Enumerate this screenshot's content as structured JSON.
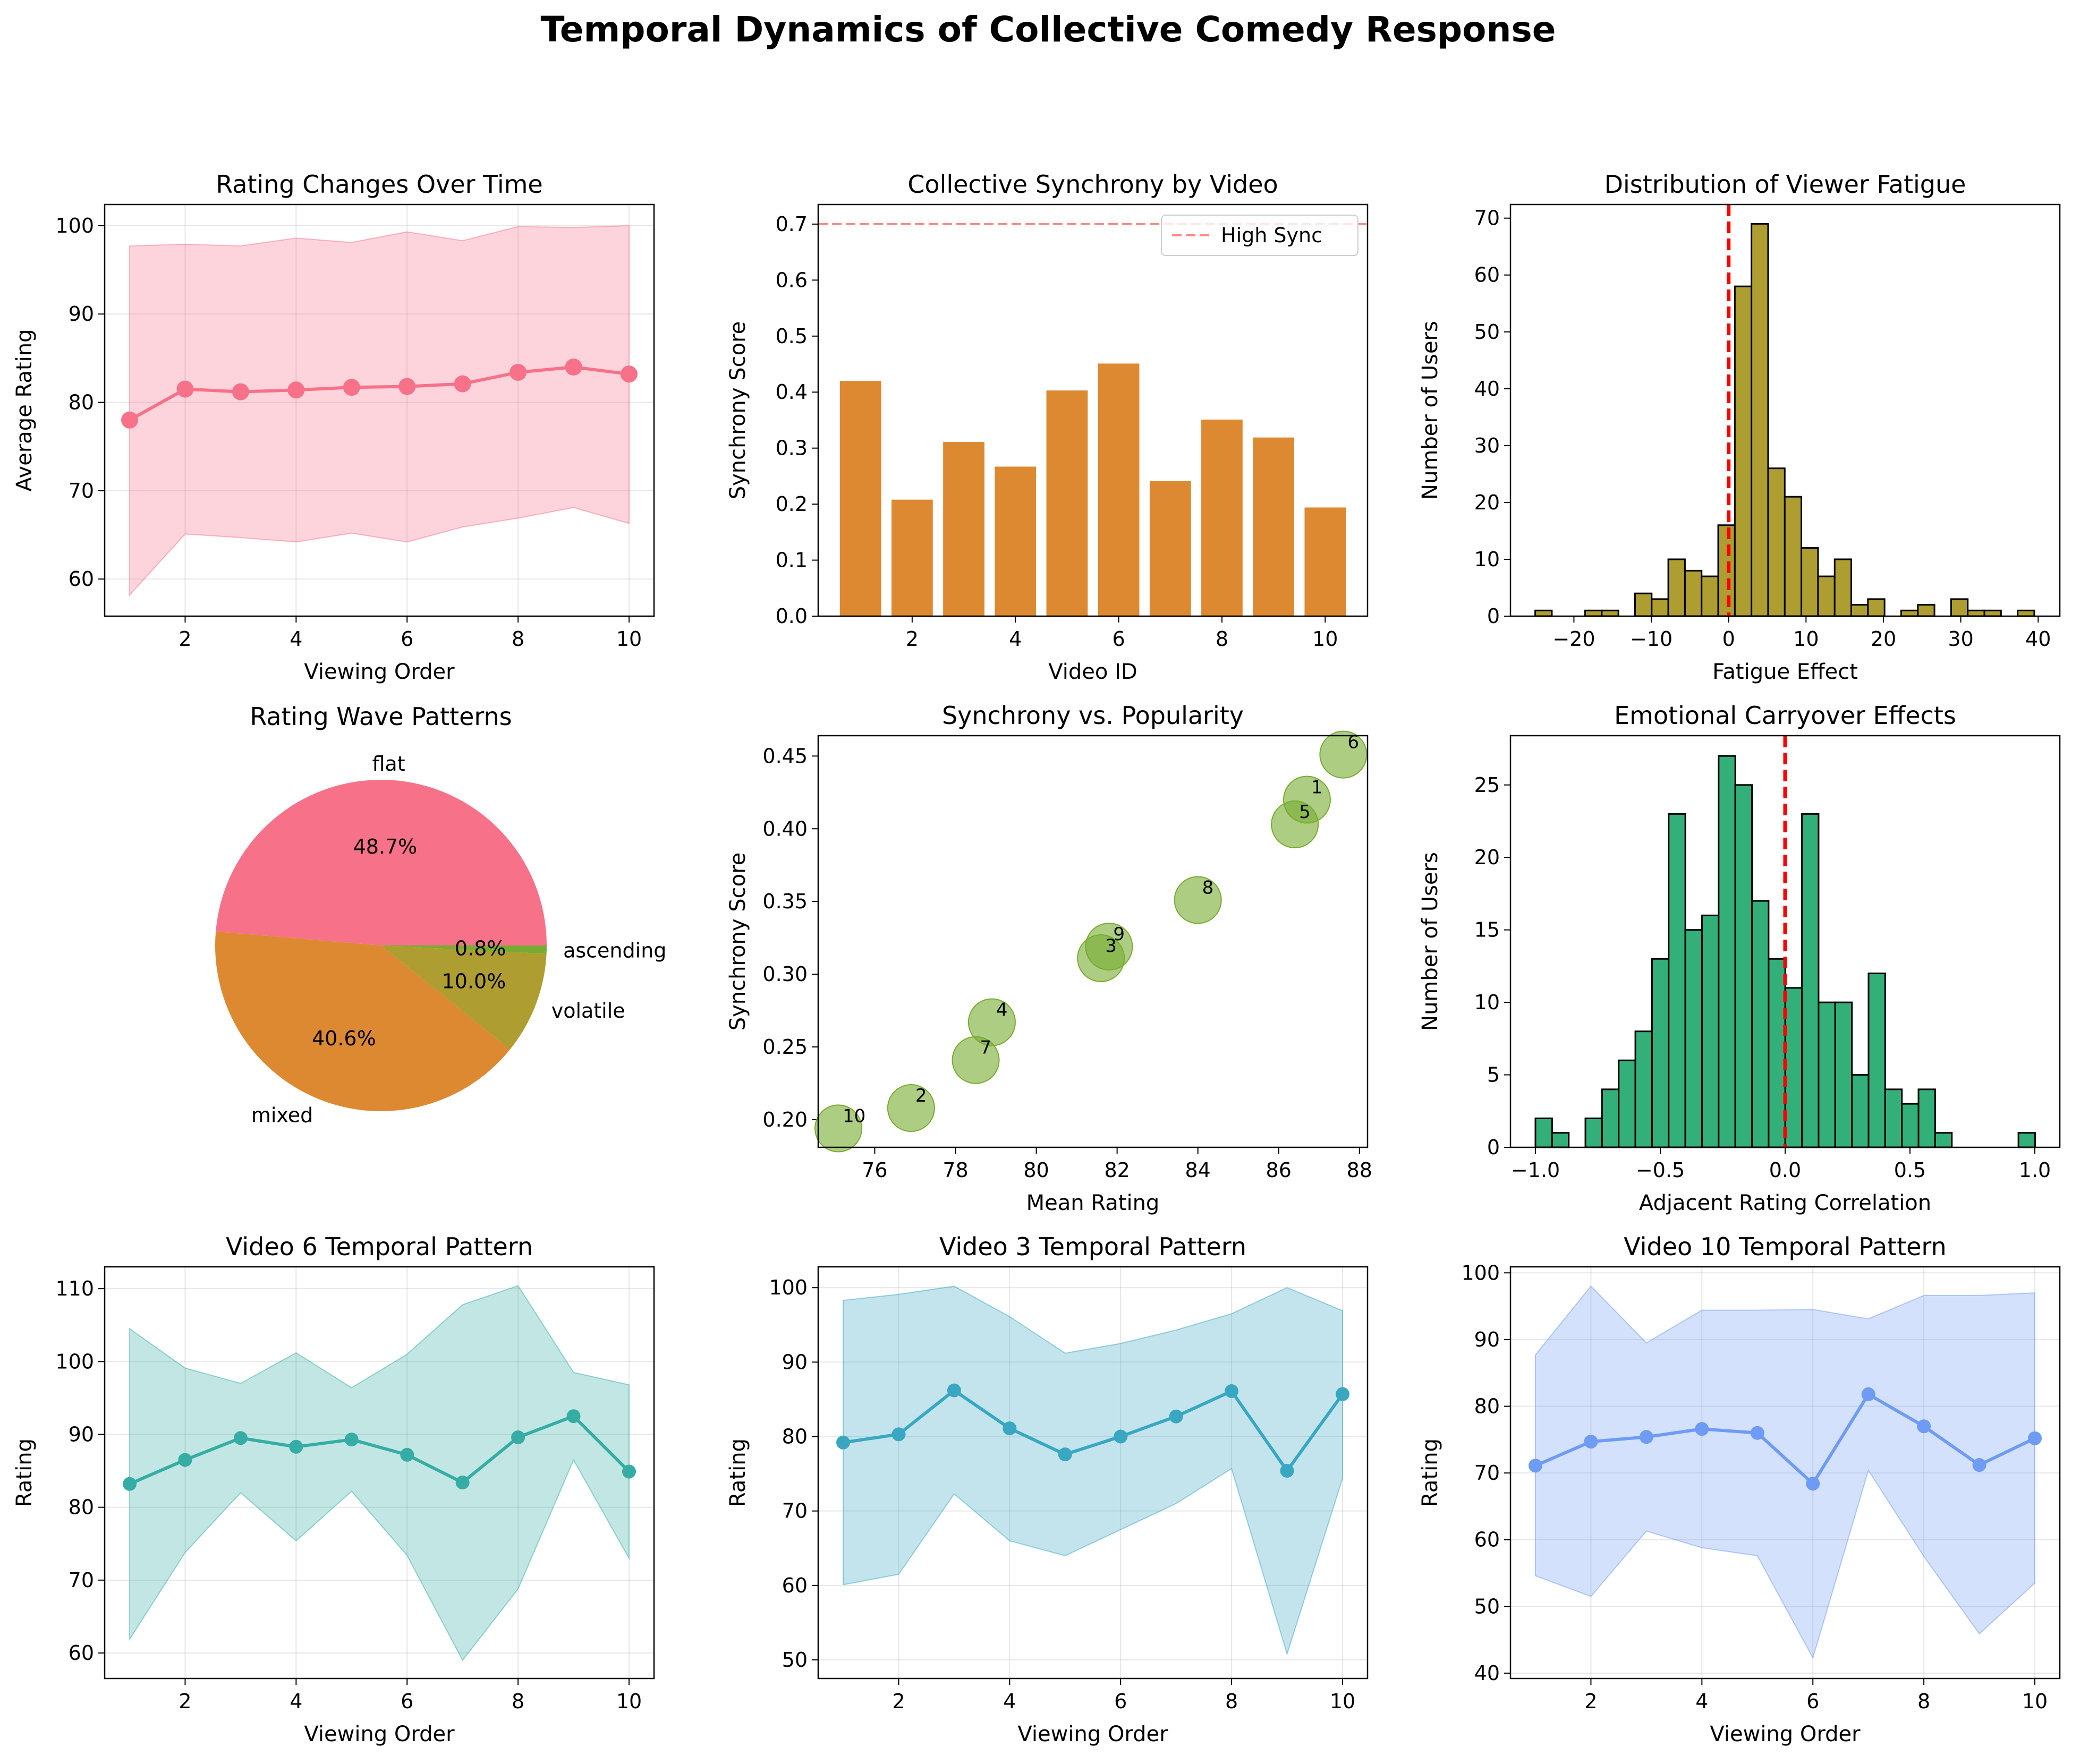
{
  "figure": {
    "title": "Temporal Dynamics of Collective Comedy Response"
  },
  "chart_data": [
    {
      "id": "ratings",
      "type": "line",
      "title": "Rating Changes Over Time",
      "xlabel": "Viewing Order",
      "ylabel": "Average Rating",
      "xlim": [
        0.55,
        10.45
      ],
      "ylim": [
        55.8,
        102.4
      ],
      "xticks": [
        2,
        4,
        6,
        8,
        10
      ],
      "yticks": [
        60,
        70,
        80,
        90,
        100
      ],
      "x": [
        1,
        2,
        3,
        4,
        5,
        6,
        7,
        8,
        9,
        10
      ],
      "mean": [
        78.0,
        81.5,
        81.2,
        81.4,
        81.7,
        81.8,
        82.1,
        83.4,
        84.0,
        83.2
      ],
      "upper": [
        97.7,
        97.9,
        97.7,
        98.6,
        98.1,
        99.3,
        98.3,
        99.9,
        99.8,
        100.0
      ],
      "lower": [
        58.2,
        65.1,
        64.7,
        64.2,
        65.2,
        64.2,
        65.9,
        66.9,
        68.1,
        66.3
      ],
      "color": "#f77189",
      "fill": "#f77189",
      "grid": true
    },
    {
      "id": "sync",
      "type": "bar",
      "title": "Collective Synchrony by Video",
      "xlabel": "Video ID",
      "ylabel": "Synchrony Score",
      "xlim": [
        0.18,
        10.82
      ],
      "ylim": [
        0,
        0.735
      ],
      "xticks": [
        2,
        4,
        6,
        8,
        10
      ],
      "yticks": [
        0.0,
        0.1,
        0.2,
        0.3,
        0.4,
        0.5,
        0.6,
        0.7
      ],
      "categories": [
        1,
        2,
        3,
        4,
        5,
        6,
        7,
        8,
        9,
        10
      ],
      "values": [
        0.42,
        0.208,
        0.311,
        0.267,
        0.403,
        0.451,
        0.241,
        0.351,
        0.319,
        0.194
      ],
      "hline": {
        "value": 0.7,
        "label": "High Sync",
        "color": "#ff5555"
      },
      "legend": "top-right",
      "color": "#dc8932",
      "grid": false
    },
    {
      "id": "fatigue",
      "type": "bar",
      "title": "Distribution of Viewer Fatigue",
      "xlabel": "Fatigue Effect",
      "ylabel": "Number of Users",
      "xlim": [
        -28.2,
        42.8
      ],
      "ylim": [
        0,
        72.4
      ],
      "xticks": [
        -20,
        -10,
        0,
        10,
        20,
        30,
        40
      ],
      "yticks": [
        0,
        10,
        20,
        30,
        40,
        50,
        60,
        70
      ],
      "bin_start": -25,
      "bin_width": 2.15,
      "counts": [
        1,
        0,
        0,
        1,
        1,
        0,
        4,
        3,
        10,
        8,
        7,
        16,
        58,
        69,
        26,
        21,
        12,
        7,
        10,
        2,
        3,
        0,
        1,
        2,
        0,
        3,
        1,
        1,
        0,
        1
      ],
      "vline": 0,
      "color": "#ae9d31",
      "grid": false
    },
    {
      "id": "waves",
      "type": "pie",
      "title": "Rating Wave Patterns",
      "labels": [
        "flat",
        "mixed",
        "volatile",
        "ascending"
      ],
      "values": [
        48.7,
        40.6,
        10.0,
        0.8
      ],
      "autopct": [
        "48.7%",
        "40.6%",
        "10.0%",
        "0.8%"
      ],
      "colors": [
        "#f77189",
        "#dc8932",
        "#ae9d31",
        "#77ab31"
      ]
    },
    {
      "id": "syncpop",
      "type": "scatter",
      "title": "Synchrony vs. Popularity",
      "xlabel": "Mean Rating",
      "ylabel": "Synchrony Score",
      "xlim": [
        74.6,
        88.2
      ],
      "ylim": [
        0.181,
        0.464
      ],
      "xticks": [
        76,
        78,
        80,
        82,
        84,
        86,
        88
      ],
      "yticks": [
        0.2,
        0.25,
        0.3,
        0.35,
        0.4,
        0.45
      ],
      "points": [
        {
          "label": "1",
          "x": 86.7,
          "y": 0.42
        },
        {
          "label": "2",
          "x": 76.9,
          "y": 0.208
        },
        {
          "label": "3",
          "x": 81.6,
          "y": 0.311
        },
        {
          "label": "4",
          "x": 78.9,
          "y": 0.267
        },
        {
          "label": "5",
          "x": 86.4,
          "y": 0.403
        },
        {
          "label": "6",
          "x": 87.6,
          "y": 0.451
        },
        {
          "label": "7",
          "x": 78.5,
          "y": 0.241
        },
        {
          "label": "8",
          "x": 84.0,
          "y": 0.351
        },
        {
          "label": "9",
          "x": 81.8,
          "y": 0.319
        },
        {
          "label": "10",
          "x": 75.1,
          "y": 0.194
        }
      ],
      "color": "#77ab31",
      "grid": false
    },
    {
      "id": "carry",
      "type": "bar",
      "title": "Emotional Carryover Effects",
      "xlabel": "Adjacent Rating Correlation",
      "ylabel": "Number of Users",
      "xlim": [
        -1.1,
        1.1
      ],
      "ylim": [
        0,
        28.4
      ],
      "xticks": [
        -1.0,
        -0.5,
        0.0,
        0.5,
        1.0
      ],
      "yticks": [
        0,
        5,
        10,
        15,
        20,
        25
      ],
      "bin_start": -1.0,
      "bin_width": 0.0667,
      "counts": [
        2,
        1,
        0,
        2,
        4,
        6,
        8,
        13,
        23,
        15,
        16,
        27,
        25,
        17,
        13,
        11,
        23,
        10,
        10,
        5,
        12,
        4,
        3,
        4,
        1,
        0,
        0,
        0,
        0,
        1
      ],
      "vline": 0,
      "color": "#33b07a",
      "grid": false
    },
    {
      "id": "v6",
      "type": "line",
      "title": "Video 6 Temporal Pattern",
      "xlabel": "Viewing Order",
      "ylabel": "Rating",
      "xlim": [
        0.55,
        10.45
      ],
      "ylim": [
        56.5,
        113.0
      ],
      "xticks": [
        2,
        4,
        6,
        8,
        10
      ],
      "yticks": [
        60,
        70,
        80,
        90,
        100,
        110
      ],
      "x": [
        1,
        2,
        3,
        4,
        5,
        6,
        7,
        8,
        9,
        10
      ],
      "mean": [
        83.2,
        86.5,
        89.5,
        88.3,
        89.3,
        87.2,
        83.4,
        89.6,
        92.5,
        84.9
      ],
      "upper": [
        104.5,
        99.1,
        97.0,
        101.2,
        96.4,
        101.0,
        107.8,
        110.4,
        98.5,
        96.8
      ],
      "lower": [
        61.9,
        73.8,
        82.0,
        75.4,
        82.2,
        73.4,
        59.0,
        68.8,
        86.5,
        73.0
      ],
      "color": "#36ada4",
      "fill": "#36ada4",
      "grid": true
    },
    {
      "id": "v3",
      "type": "line",
      "title": "Video 3 Temporal Pattern",
      "xlabel": "Viewing Order",
      "ylabel": "Rating",
      "xlim": [
        0.55,
        10.45
      ],
      "ylim": [
        47.5,
        102.8
      ],
      "xticks": [
        2,
        4,
        6,
        8,
        10
      ],
      "yticks": [
        50,
        60,
        70,
        80,
        90,
        100
      ],
      "x": [
        1,
        2,
        3,
        4,
        5,
        6,
        7,
        8,
        9,
        10
      ],
      "mean": [
        79.2,
        80.3,
        86.2,
        81.1,
        77.6,
        80.0,
        82.7,
        86.1,
        75.4,
        85.7
      ],
      "upper": [
        98.3,
        99.1,
        100.2,
        96.1,
        91.2,
        92.5,
        94.3,
        96.5,
        100.0,
        96.9
      ],
      "lower": [
        60.1,
        61.5,
        72.3,
        66.0,
        64.0,
        67.5,
        71.0,
        75.7,
        50.8,
        74.4
      ],
      "color": "#39a7c1",
      "fill": "#39a7c1",
      "grid": true
    },
    {
      "id": "v10",
      "type": "line",
      "title": "Video 10 Temporal Pattern",
      "xlabel": "Viewing Order",
      "ylabel": "Rating",
      "xlim": [
        0.55,
        10.45
      ],
      "ylim": [
        39.2,
        100.9
      ],
      "xticks": [
        2,
        4,
        6,
        8,
        10
      ],
      "yticks": [
        40,
        50,
        60,
        70,
        80,
        90,
        100
      ],
      "x": [
        1,
        2,
        3,
        4,
        5,
        6,
        7,
        8,
        9,
        10
      ],
      "mean": [
        71.1,
        74.7,
        75.4,
        76.6,
        76.0,
        68.4,
        81.8,
        77.0,
        71.2,
        75.2
      ],
      "upper": [
        87.7,
        98.0,
        89.5,
        94.4,
        94.4,
        94.5,
        93.1,
        96.6,
        96.6,
        97.0
      ],
      "lower": [
        54.6,
        51.5,
        61.3,
        58.8,
        57.6,
        42.3,
        70.4,
        57.5,
        45.9,
        53.5
      ],
      "color": "#6e9bf4",
      "fill": "#6e9bf4",
      "grid": true
    }
  ]
}
